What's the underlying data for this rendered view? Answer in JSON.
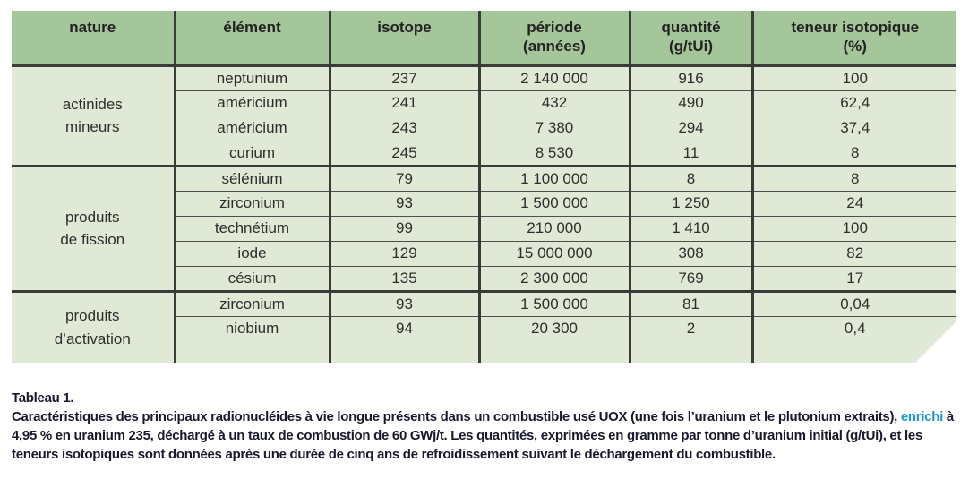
{
  "colors": {
    "header_green": "#a5c69b",
    "row_green": "#dfe9d5",
    "border_dark": "#3b3b3a",
    "row_line": "#4e4e4d",
    "caption_text": "#19192e",
    "link_blue": "#1e96d2"
  },
  "table": {
    "columns": [
      "nature",
      "élément",
      "isotope",
      "période\n(années)",
      "quantité\n(g/tUi)",
      "teneur isotopique\n(%)"
    ],
    "groups": [
      {
        "nature": "actinides\nmineurs",
        "rows": [
          {
            "element": "neptunium",
            "isotope": "237",
            "period": "2 140 000",
            "quantity": "916",
            "content": "100"
          },
          {
            "element": "américium",
            "isotope": "241",
            "period": "432",
            "quantity": "490",
            "content": "62,4"
          },
          {
            "element": "américium",
            "isotope": "243",
            "period": "7 380",
            "quantity": "294",
            "content": "37,4"
          },
          {
            "element": "curium",
            "isotope": "245",
            "period": "8 530",
            "quantity": "11",
            "content": "8"
          }
        ]
      },
      {
        "nature": "produits\nde fission",
        "rows": [
          {
            "element": "sélénium",
            "isotope": "79",
            "period": "1 100 000",
            "quantity": "8",
            "content": "8"
          },
          {
            "element": "zirconium",
            "isotope": "93",
            "period": "1 500 000",
            "quantity": "1 250",
            "content": "24"
          },
          {
            "element": "technétium",
            "isotope": "99",
            "period": "210 000",
            "quantity": "1 410",
            "content": "100"
          },
          {
            "element": "iode",
            "isotope": "129",
            "period": "15 000 000",
            "quantity": "308",
            "content": "82"
          },
          {
            "element": "césium",
            "isotope": "135",
            "period": "2 300 000",
            "quantity": "769",
            "content": "17"
          }
        ]
      },
      {
        "nature": "produits\nd’activation",
        "rows": [
          {
            "element": "zirconium",
            "isotope": "93",
            "period": "1 500 000",
            "quantity": "81",
            "content": "0,04"
          },
          {
            "element": "niobium",
            "isotope": "94",
            "period": "20 300",
            "quantity": "2",
            "content": "0,4"
          }
        ]
      }
    ]
  },
  "caption": {
    "title": "Tableau 1.",
    "text_before": "Caractéristiques des principaux radionucléides à vie longue présents dans un combustible usé UOX (une fois l’uranium et le plutonium extraits), ",
    "term": "enrichi",
    "text_after": " à 4,95 % en uranium 235, déchargé à un taux de combustion de 60 GWj/t. Les quantités, exprimées en gramme par tonne d’uranium initial (g/tUi), et les teneurs isotopiques sont données après une durée de cinq ans de refroidissement suivant le déchargement du combustible."
  }
}
